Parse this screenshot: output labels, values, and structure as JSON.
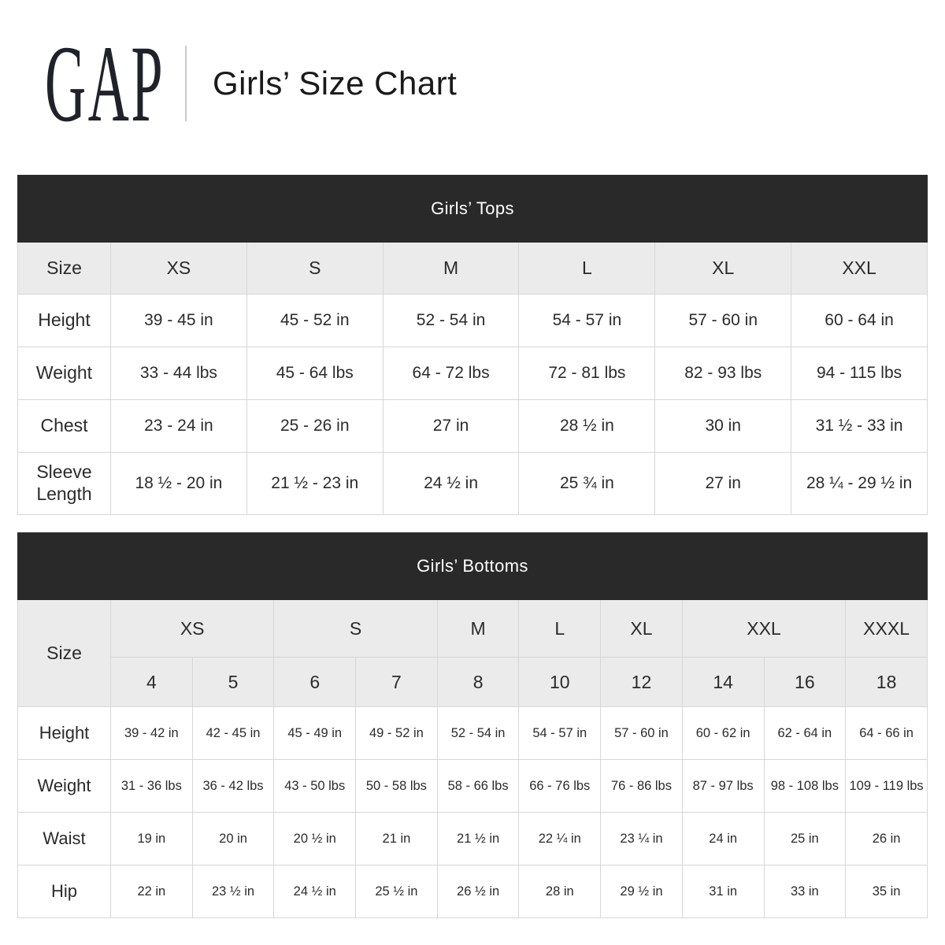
{
  "header": {
    "logo_text": "GAP",
    "title": "Girls’ Size Chart"
  },
  "tops_table": {
    "title": "Girls’ Tops",
    "size_label": "Size",
    "sizes": [
      "XS",
      "S",
      "M",
      "L",
      "XL",
      "XXL"
    ],
    "rows": [
      {
        "label": "Height",
        "values": [
          "39 - 45 in",
          "45 - 52 in",
          "52 - 54 in",
          "54 - 57 in",
          "57 - 60 in",
          "60 - 64 in"
        ]
      },
      {
        "label": "Weight",
        "values": [
          "33 - 44 lbs",
          "45 - 64 lbs",
          "64 - 72 lbs",
          "72 - 81 lbs",
          "82 - 93 lbs",
          "94 - 115 lbs"
        ]
      },
      {
        "label": "Chest",
        "values": [
          "23 - 24 in",
          "25 - 26 in",
          "27 in",
          "28 ½ in",
          "30 in",
          "31 ½ - 33 in"
        ]
      },
      {
        "label": "Sleeve Length",
        "values": [
          "18 ½ - 20 in",
          "21 ½ - 23 in",
          "24 ½ in",
          "25 ¾ in",
          "27 in",
          "28 ¼ - 29 ½ in"
        ]
      }
    ]
  },
  "bottoms_table": {
    "title": "Girls’ Bottoms",
    "size_label": "Size",
    "size_groups": [
      {
        "label": "XS",
        "span": 2
      },
      {
        "label": "S",
        "span": 2
      },
      {
        "label": "M",
        "span": 1
      },
      {
        "label": "L",
        "span": 1
      },
      {
        "label": "XL",
        "span": 1
      },
      {
        "label": "XXL",
        "span": 2
      },
      {
        "label": "XXXL",
        "span": 1
      }
    ],
    "numeric_sizes": [
      "4",
      "5",
      "6",
      "7",
      "8",
      "10",
      "12",
      "14",
      "16",
      "18"
    ],
    "rows": [
      {
        "label": "Height",
        "values": [
          "39 - 42 in",
          "42 - 45 in",
          "45 - 49 in",
          "49 - 52 in",
          "52 - 54 in",
          "54 - 57 in",
          "57 - 60 in",
          "60 - 62 in",
          "62 - 64 in",
          "64 - 66 in"
        ]
      },
      {
        "label": "Weight",
        "values": [
          "31 - 36 lbs",
          "36 - 42 lbs",
          "43 - 50 lbs",
          "50 - 58 lbs",
          "58 - 66 lbs",
          "66 - 76 lbs",
          "76 - 86 lbs",
          "87 - 97 lbs",
          "98 - 108 lbs",
          "109 - 119 lbs"
        ]
      },
      {
        "label": "Waist",
        "values": [
          "19 in",
          "20 in",
          "20 ½ in",
          "21 in",
          "21 ½ in",
          "22 ¼ in",
          "23 ¼ in",
          "24 in",
          "25 in",
          "26 in"
        ]
      },
      {
        "label": "Hip",
        "values": [
          "22 in",
          "23 ½ in",
          "24 ½ in",
          "25 ½ in",
          "26 ½ in",
          "28 in",
          "29 ½ in",
          "31 in",
          "33 in",
          "35 in"
        ]
      }
    ]
  },
  "colors": {
    "banner_background": "#292929",
    "banner_text": "#ffffff",
    "header_row_background": "#ebebeb",
    "cell_border": "#d7d7d7",
    "text": "#2b2b2b",
    "logo": "#20222b",
    "page_background": "#ffffff"
  }
}
